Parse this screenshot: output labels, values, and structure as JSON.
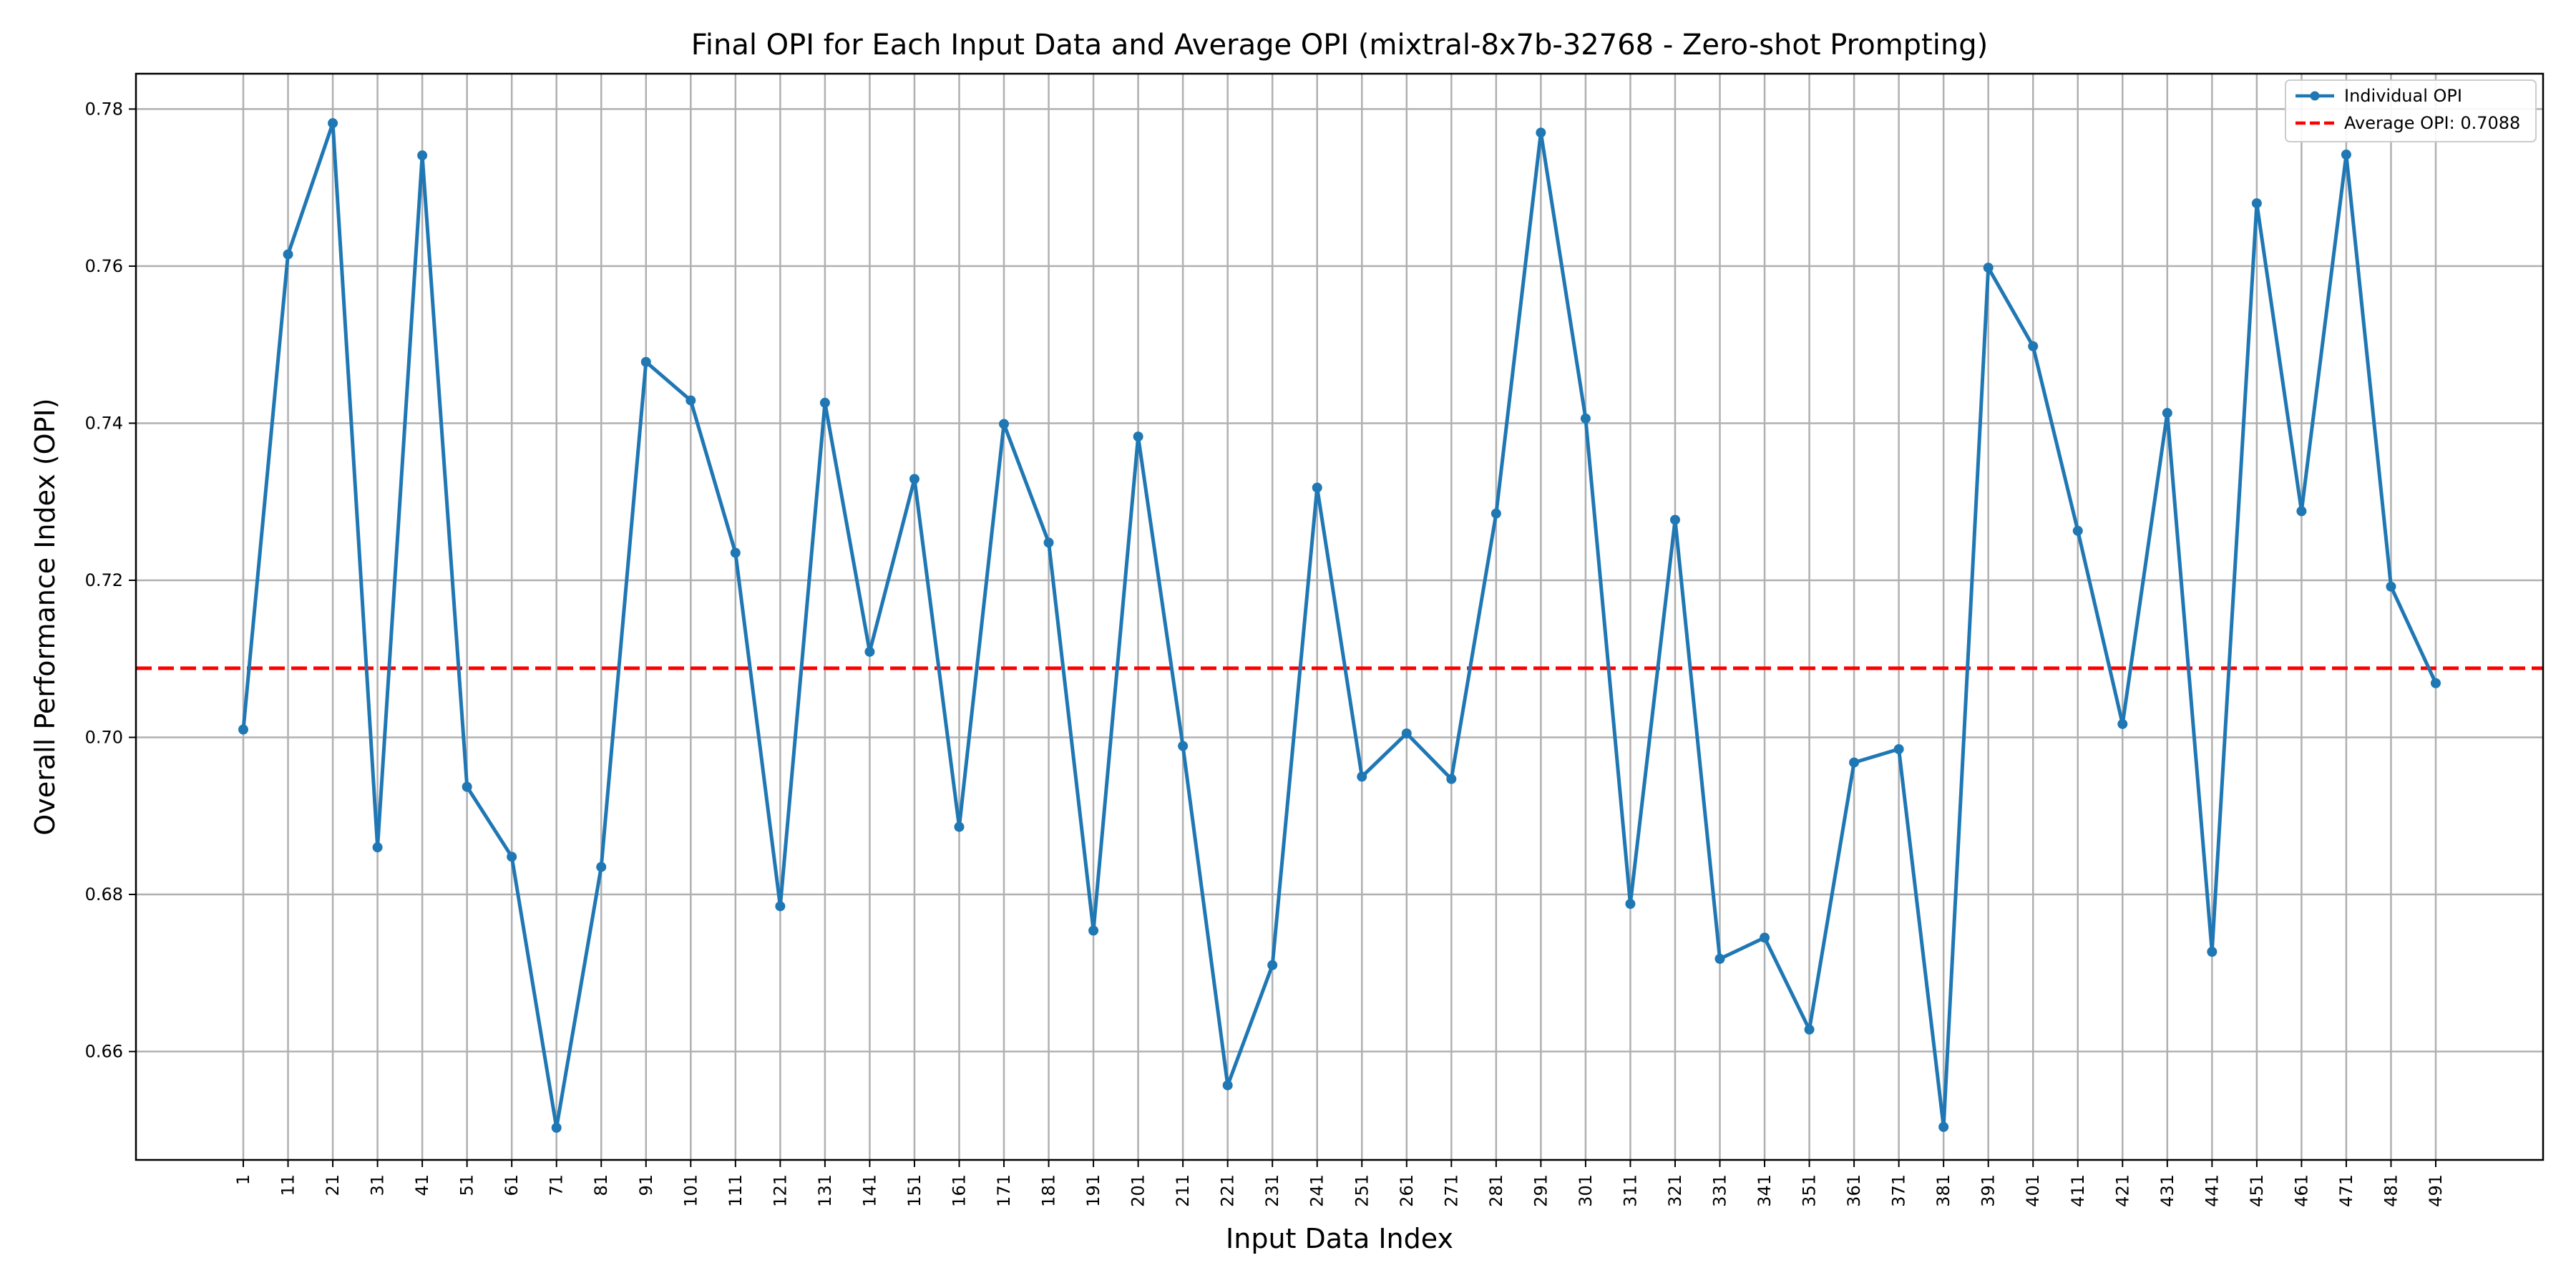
{
  "chart_data": {
    "type": "line",
    "title": "Final OPI for Each Input Data and Average OPI (mixtral-8x7b-32768 - Zero-shot Prompting)",
    "xlabel": "Input Data Index",
    "ylabel": "Overall Performance Index (OPI)",
    "x": [
      1,
      11,
      21,
      31,
      41,
      51,
      61,
      71,
      81,
      91,
      101,
      111,
      121,
      131,
      141,
      151,
      161,
      171,
      181,
      191,
      201,
      211,
      221,
      231,
      241,
      251,
      261,
      271,
      281,
      291,
      301,
      311,
      321,
      331,
      341,
      351,
      361,
      371,
      381,
      391,
      401,
      411,
      421,
      431,
      441,
      451,
      461,
      471,
      481,
      491
    ],
    "xtick_labels": [
      "1",
      "11",
      "21",
      "31",
      "41",
      "51",
      "61",
      "71",
      "81",
      "91",
      "101",
      "111",
      "121",
      "131",
      "141",
      "151",
      "161",
      "171",
      "181",
      "191",
      "201",
      "211",
      "221",
      "231",
      "241",
      "251",
      "261",
      "271",
      "281",
      "291",
      "301",
      "311",
      "321",
      "331",
      "341",
      "351",
      "361",
      "371",
      "381",
      "391",
      "401",
      "411",
      "421",
      "431",
      "441",
      "451",
      "461",
      "471",
      "481",
      "491"
    ],
    "ylim": [
      0.6462,
      0.7845
    ],
    "yticks": [
      0.66,
      0.68,
      0.7,
      0.72,
      0.74,
      0.76,
      0.78
    ],
    "ytick_labels": [
      "0.66",
      "0.68",
      "0.70",
      "0.72",
      "0.74",
      "0.76",
      "0.78"
    ],
    "grid": true,
    "legend_position": "top-right",
    "series": [
      {
        "name": "Individual OPI",
        "color": "#1f77b4",
        "style": "solid line with circle markers",
        "values": [
          0.701,
          0.7615,
          0.7782,
          0.686,
          0.7741,
          0.6937,
          0.6848,
          0.6503,
          0.6835,
          0.7478,
          0.7429,
          0.7235,
          0.6785,
          0.7426,
          0.7109,
          0.7329,
          0.6886,
          0.7399,
          0.7248,
          0.6754,
          0.7383,
          0.6989,
          0.6557,
          0.671,
          0.7318,
          0.695,
          0.7005,
          0.6947,
          0.7285,
          0.777,
          0.7406,
          0.6788,
          0.7277,
          0.6718,
          0.6745,
          0.6628,
          0.6968,
          0.6985,
          0.6504,
          0.7598,
          0.7498,
          0.7263,
          0.7017,
          0.7413,
          0.6727,
          0.768,
          0.7288,
          0.7742,
          0.7192,
          0.7069
        ]
      }
    ],
    "reference_line": {
      "name": "Average OPI: 0.7088",
      "value": 0.7088,
      "color": "#ff0000",
      "style": "dashed"
    }
  }
}
